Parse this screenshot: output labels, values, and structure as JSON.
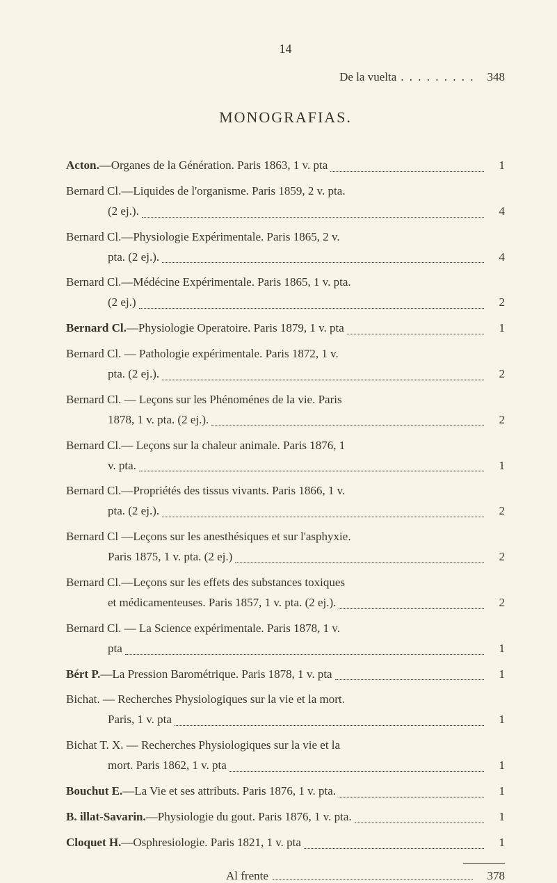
{
  "page_number_top": "14",
  "carryover": {
    "label": "De la vuelta",
    "value": "348"
  },
  "section_heading": "MONOGRAFIAS.",
  "entries": [
    {
      "author": "Acton.",
      "rest": "—Organes de la Génération. Paris 1863, 1 v. pta",
      "price": "1"
    },
    {
      "author": "Bernard Cl.",
      "rest": "—Liquides de l'organisme. Paris 1859, 2 v. pta.",
      "cont": "(2 ej.).",
      "price": "4"
    },
    {
      "author": "Bernard Cl.",
      "rest": "—Physiologie Expérimentale. Paris 1865, 2 v.",
      "cont": "pta. (2 ej.).",
      "price": "4"
    },
    {
      "author": "Bernard Cl.",
      "rest": "—Médécine Expérimentale. Paris 1865, 1 v. pta.",
      "cont": "(2 ej.)",
      "price": "2"
    },
    {
      "author": "Bernard Cl.",
      "rest": "—Physiologie Operatoire. Paris 1879, 1 v. pta",
      "price": "1"
    },
    {
      "author": "Bernard Cl.",
      "rest": " — Pathologie expérimentale. Paris 1872, 1 v.",
      "cont": "pta. (2 ej.).",
      "price": "2"
    },
    {
      "author": "Bernard Cl.",
      "rest": " — Leçons sur les Phénoménes de la vie. Paris",
      "cont": "1878, 1 v. pta. (2 ej.).",
      "price": "2"
    },
    {
      "author": "Bernard Cl.",
      "rest": "— Leçons sur la chaleur animale. Paris 1876, 1",
      "cont": "v. pta.",
      "price": "1"
    },
    {
      "author": "Bernard Cl.",
      "rest": "—Propriétés des tissus vivants. Paris 1866, 1 v.",
      "cont": "pta. (2 ej.).",
      "price": "2"
    },
    {
      "author": "Bernard Cl",
      "rest": " —Leçons sur les anesthésiques et sur l'asphyxie.",
      "cont": "Paris 1875, 1 v. pta. (2 ej.)",
      "price": "2"
    },
    {
      "author": "Bernard Cl.",
      "rest": "—Leçons sur les effets des substances toxiques",
      "cont": "et médicamenteuses. Paris 1857, 1 v. pta. (2 ej.).",
      "price": "2"
    },
    {
      "author": "Bernard Cl.",
      "rest": " — La Science expérimentale. Paris 1878, 1 v.",
      "cont": "pta",
      "price": "1"
    },
    {
      "author": "Bért P.",
      "rest": "—La Pression Barométrique. Paris 1878, 1 v. pta",
      "price": "1"
    },
    {
      "author": "Bichat.",
      "rest": " — Recherches Physiologiques sur la vie et la mort.",
      "cont": "Paris, 1 v. pta",
      "price": "1"
    },
    {
      "author": "Bichat T. X.",
      "rest": " — Recherches Physiologiques sur la vie et la",
      "cont": "mort. Paris 1862, 1 v. pta",
      "price": "1"
    },
    {
      "author": "Bouchut E.",
      "rest": "—La Vie et ses attributs. Paris 1876, 1 v. pta.",
      "price": "1"
    },
    {
      "author": "B. illat-Savarin.",
      "rest": "—Physiologie du gout. Paris 1876, 1 v. pta.",
      "price": "1"
    },
    {
      "author": "Cloquet H.",
      "rest": "—Osphresiologie. Paris 1821, 1 v. pta",
      "price": "1"
    }
  ],
  "footer": {
    "label": "Al frente",
    "value": "378"
  }
}
